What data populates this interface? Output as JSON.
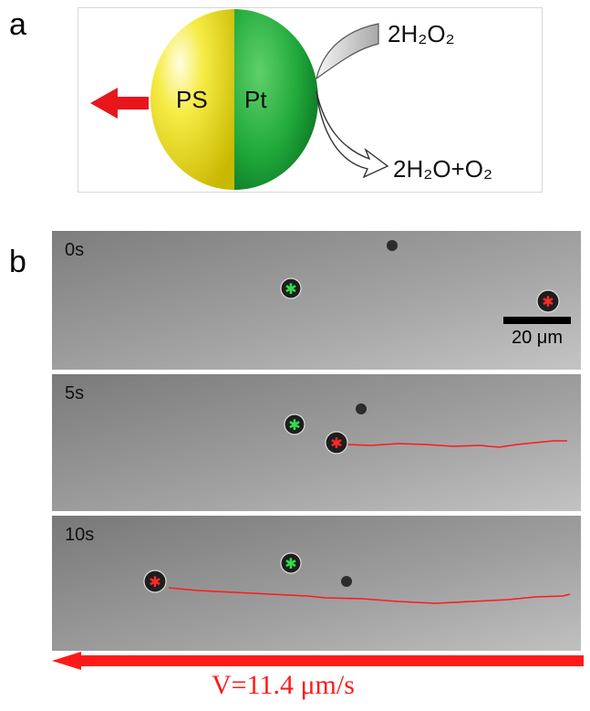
{
  "panels": {
    "a": "a",
    "b": "b"
  },
  "schematic": {
    "left_hemisphere_label": "PS",
    "right_hemisphere_label": "Pt",
    "reactant": "2H₂O₂",
    "product": "2H₂O+O₂",
    "colors": {
      "ps": "#f2e62a",
      "pt": "#1fa83a",
      "motion_arrow": "#e8161b"
    }
  },
  "frames": [
    {
      "time": "0s"
    },
    {
      "time": "5s"
    },
    {
      "time": "10s"
    }
  ],
  "scale_bar": {
    "label": "20 μm"
  },
  "velocity": {
    "label": "V=11.4 μm/s",
    "color": "#ff1a1a"
  }
}
